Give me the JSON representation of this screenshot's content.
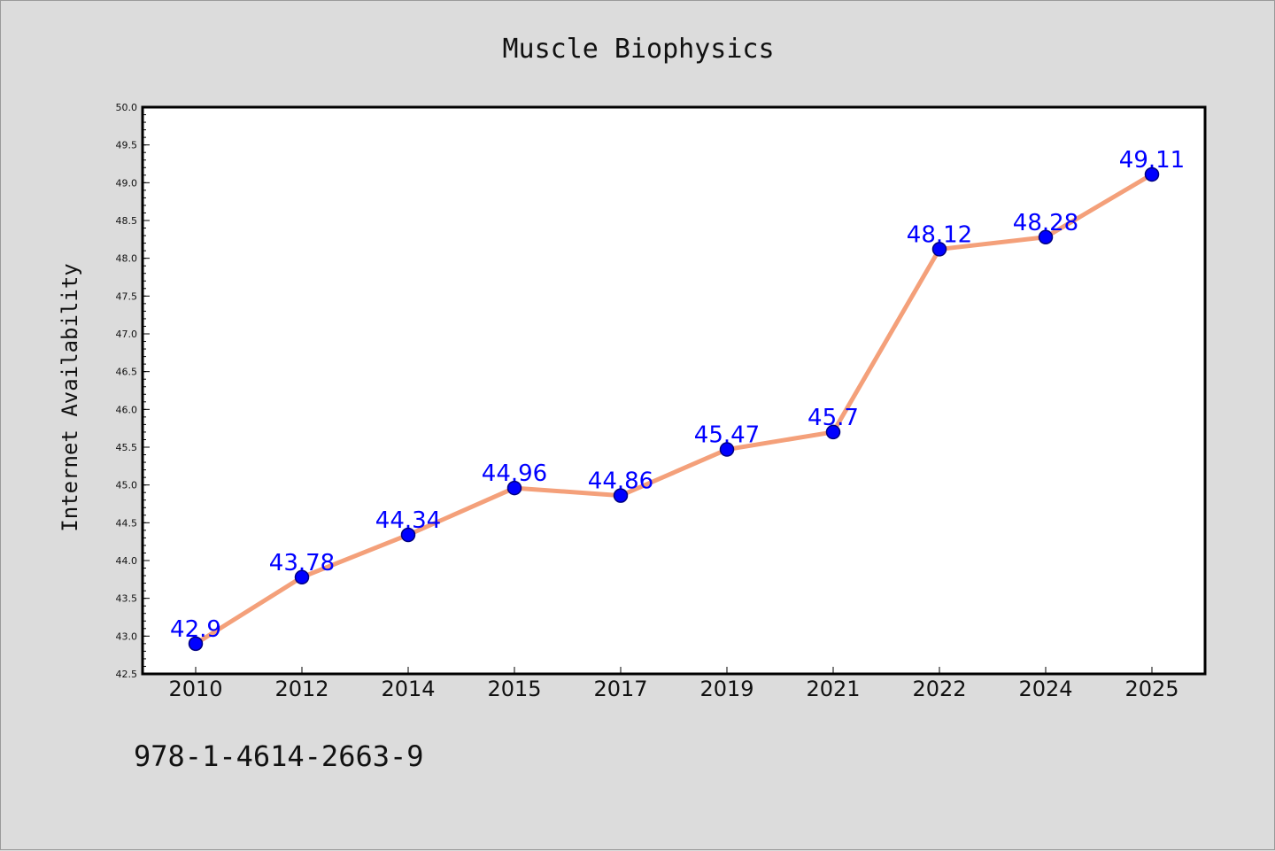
{
  "chart_data": {
    "type": "line",
    "title": "Muscle Biophysics",
    "xlabel": "",
    "ylabel": "Internet Availability",
    "categories": [
      "2010",
      "2012",
      "2014",
      "2015",
      "2017",
      "2019",
      "2021",
      "2022",
      "2024",
      "2025"
    ],
    "series": [
      {
        "values": [
          42.9,
          43.78,
          44.34,
          44.96,
          44.86,
          45.47,
          45.7,
          48.12,
          48.28,
          49.11
        ],
        "data_labels": [
          "42.9",
          "43.78",
          "44.34",
          "44.96",
          "44.86",
          "45.47",
          "45.7",
          "48.12",
          "48.28",
          "49.11"
        ]
      }
    ],
    "ylim": [
      42.5,
      50.0
    ],
    "yticks": [
      "42.5",
      "43.0",
      "43.5",
      "44.0",
      "44.5",
      "45.0",
      "45.5",
      "46.0",
      "46.5",
      "47.0",
      "47.5",
      "48.0",
      "48.5",
      "49.0",
      "49.5",
      "50.0"
    ],
    "grid": false,
    "legend": "none",
    "colors": {
      "line": "#f4a07a",
      "marker_fill": "#0000ff",
      "marker_stroke": "#000080",
      "data_label": "#0000ff",
      "plot_background": "#ffffff",
      "figure_background": "#dcdcdc"
    }
  },
  "footer": {
    "text": "978-1-4614-2663-9"
  }
}
